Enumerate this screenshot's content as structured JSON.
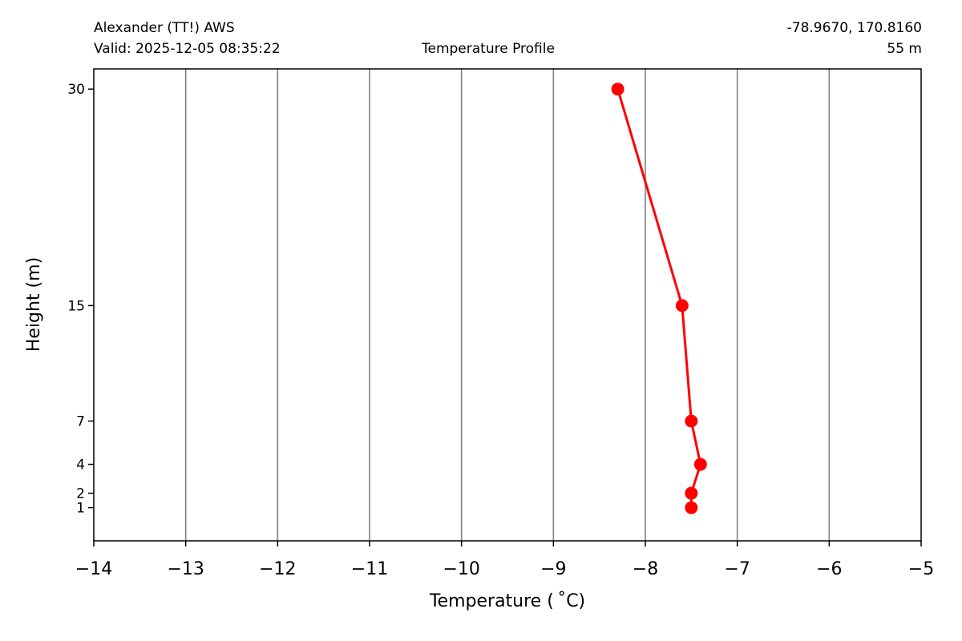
{
  "header": {
    "station": "Alexander (TT!) AWS",
    "valid": "Valid: 2025-12-05 08:35:22",
    "title": "Temperature Profile",
    "coords": "-78.9670, 170.8160",
    "elevation": "55 m"
  },
  "chart_data": {
    "type": "line",
    "xlabel": "Temperature ( ˚C)",
    "ylabel": "Height (m)",
    "xlim": [
      -14,
      -5
    ],
    "ylim": [
      -1.3,
      31.4
    ],
    "x_ticks": [
      -14,
      -13,
      -12,
      -11,
      -10,
      -9,
      -8,
      -7,
      -6,
      -5
    ],
    "y_ticks": [
      1,
      2,
      4,
      7,
      15,
      30
    ],
    "grid": "vertical",
    "series": [
      {
        "color": "#ff0000",
        "points": [
          {
            "height": 1,
            "temp": -7.5
          },
          {
            "height": 2,
            "temp": -7.5
          },
          {
            "height": 4,
            "temp": -7.4
          },
          {
            "height": 7,
            "temp": -7.5
          },
          {
            "height": 15,
            "temp": -7.6
          },
          {
            "height": 30,
            "temp": -8.3
          }
        ]
      }
    ]
  }
}
